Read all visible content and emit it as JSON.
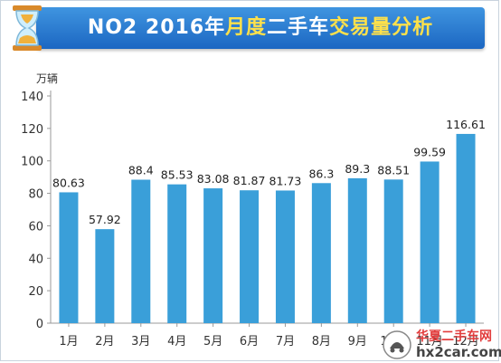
{
  "title": {
    "prefix": "NO2 2016年",
    "highlight": "月度",
    "middle": "二手车",
    "suffix": "交易量分析"
  },
  "unit_label": "万辆",
  "watermark": {
    "line1": "华夏二手车网",
    "line2": "hx2car.com"
  },
  "colors": {
    "bar": "#3a9fd9",
    "title_bg": "#2b7fd4",
    "title_highlight": "#ffe14a"
  },
  "chart_data": {
    "type": "bar",
    "title": "NO2 2016年月度二手车交易量分析",
    "ylabel": "万辆",
    "xlabel": "",
    "ylim": [
      0,
      140
    ],
    "yticks": [
      0,
      20,
      40,
      60,
      80,
      100,
      120,
      140
    ],
    "categories": [
      "1月",
      "2月",
      "3月",
      "4月",
      "5月",
      "6月",
      "7月",
      "8月",
      "9月",
      "10月",
      "11月",
      "12月"
    ],
    "values": [
      80.63,
      57.92,
      88.4,
      85.53,
      83.08,
      81.87,
      81.73,
      86.3,
      89.3,
      88.51,
      99.59,
      116.61
    ],
    "data_labels": [
      "80.63",
      "57.92",
      "88.4",
      "85.53",
      "83.08",
      "81.87",
      "81.73",
      "86.3",
      "89.3",
      "88.51",
      "99.59",
      "116.61"
    ],
    "grid": false,
    "legend": "none"
  }
}
